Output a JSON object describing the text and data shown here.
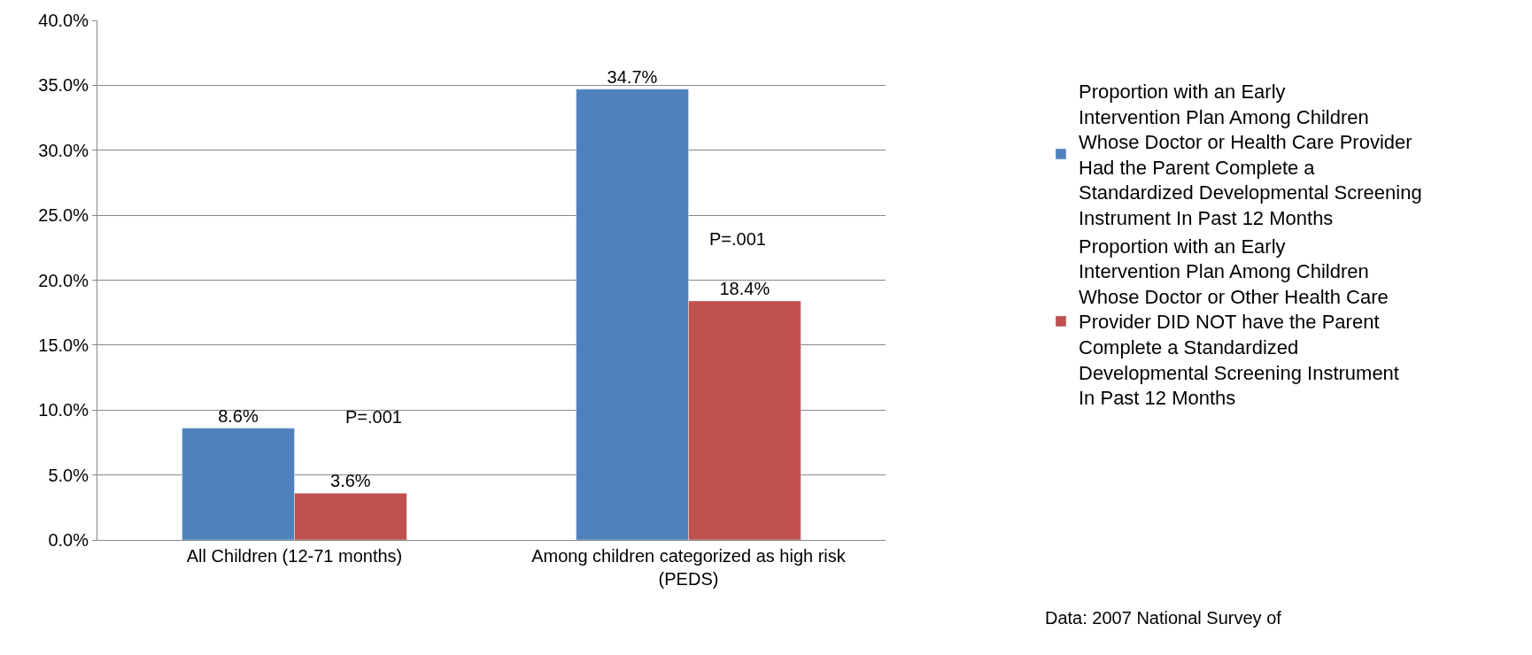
{
  "chart_data": {
    "type": "bar",
    "categories": [
      "All Children (12-71 months)",
      "Among children categorized as high risk (PEDS)"
    ],
    "series": [
      {
        "name": "Proportion with an Early Intervention Plan Among Children Whose Doctor or Health Care Provider Had the Parent Complete a Standardized Developmental Screening Instrument In Past 12 Months",
        "color": "#4f81bd",
        "values": [
          8.6,
          34.7
        ],
        "value_labels": [
          "8.6%",
          "34.7%"
        ]
      },
      {
        "name": "Proportion with an Early Intervention Plan Among Children Whose Doctor or Other Health Care Provider DID NOT have the Parent Complete a Standardized Developmental Screening Instrument In Past 12 Months",
        "color": "#c0504d",
        "values": [
          3.6,
          18.4
        ],
        "value_labels": [
          "3.6%",
          "18.4%"
        ]
      }
    ],
    "ylim": [
      0,
      40
    ],
    "yticks": [
      {
        "value": 0,
        "label": "0.0%"
      },
      {
        "value": 5,
        "label": "5.0%"
      },
      {
        "value": 10,
        "label": "10.0%"
      },
      {
        "value": 15,
        "label": "15.0%"
      },
      {
        "value": 20,
        "label": "20.0%"
      },
      {
        "value": 25,
        "label": "25.0%"
      },
      {
        "value": 30,
        "label": "30.0%"
      },
      {
        "value": 35,
        "label": "35.0%"
      },
      {
        "value": 40,
        "label": "40.0%"
      }
    ],
    "grid": "y",
    "legend": "right",
    "annotations": [
      "P=.001",
      "P=.001",
      "Data: 2007 National Survey of"
    ]
  }
}
